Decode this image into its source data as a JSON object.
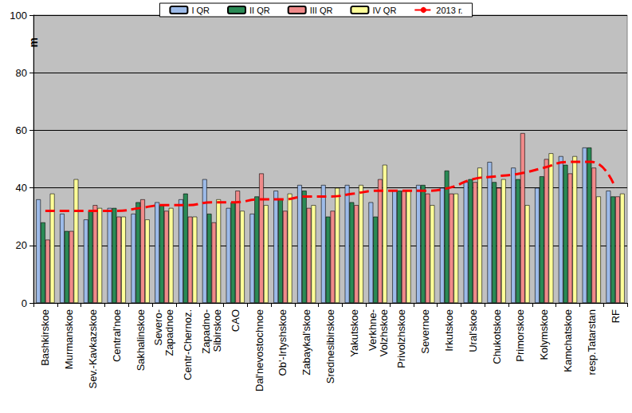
{
  "chart_data": {
    "type": "bar",
    "y_label": "m",
    "categories": [
      "Bashkirskoe",
      "Murmanskoe",
      "Sev.-Kavkazskoe",
      "Central'noe",
      "Sakhalinskoe",
      "Severo-\nZapadnoe",
      "Centr-Chernoz.",
      "Zapadno-\nSibirskoe",
      "CAO",
      "Dal'nevostochnoe",
      "Ob'-Irtyshskoe",
      "Zabaykal'skoe",
      "Srednesibirskoe",
      "Yakutskoe",
      "Verkhne-\nVolzhskoe",
      "Privolzhskoe",
      "Severnoe",
      "Irkutskoe",
      "Ural'skoe",
      "Chukotskoe",
      "Primorskoe",
      "Kolymskoe",
      "Kamchatskoe",
      "resp.Tatarstan",
      "RF"
    ],
    "series": [
      {
        "name": "I QR",
        "color": "#9dbbe9",
        "values": [
          36,
          31,
          29,
          33,
          31,
          35,
          36,
          43,
          33,
          31,
          39,
          41,
          41,
          41,
          35,
          39,
          41,
          40,
          42,
          49,
          47,
          40,
          51,
          54,
          39
        ]
      },
      {
        "name": "II QR",
        "color": "#2a8a55",
        "values": [
          28,
          25,
          32,
          33,
          35,
          34,
          38,
          31,
          35,
          37,
          36,
          39,
          30,
          35,
          30,
          39,
          41,
          46,
          43,
          42,
          43,
          44,
          48,
          54,
          37
        ]
      },
      {
        "name": "III QR",
        "color": "#f08a8a",
        "values": [
          22,
          25,
          34,
          30,
          36,
          32,
          30,
          28,
          39,
          45,
          32,
          33,
          32,
          34,
          43,
          39,
          38,
          38,
          42,
          40,
          59,
          50,
          45,
          47,
          37
        ]
      },
      {
        "name": "IV QR",
        "color": "#ffff99",
        "values": [
          38,
          43,
          33,
          30,
          29,
          33,
          30,
          36,
          32,
          34,
          38,
          34,
          40,
          41,
          48,
          39,
          34,
          38,
          47,
          43,
          34,
          52,
          51,
          37,
          38
        ]
      },
      {
        "name": "2013 г.",
        "type": "line",
        "color": "#ff0000",
        "line_style": "dashed",
        "marker": "none",
        "values": [
          32,
          32,
          32,
          32,
          33,
          34,
          34,
          35,
          35,
          36,
          36,
          37,
          37,
          38,
          39,
          39,
          39,
          40,
          43,
          44,
          45,
          47,
          49,
          49,
          40
        ]
      }
    ],
    "ylim": [
      0,
      100
    ],
    "yticks": [
      0,
      20,
      40,
      60,
      80,
      100
    ],
    "grid": true,
    "legend": "top"
  }
}
